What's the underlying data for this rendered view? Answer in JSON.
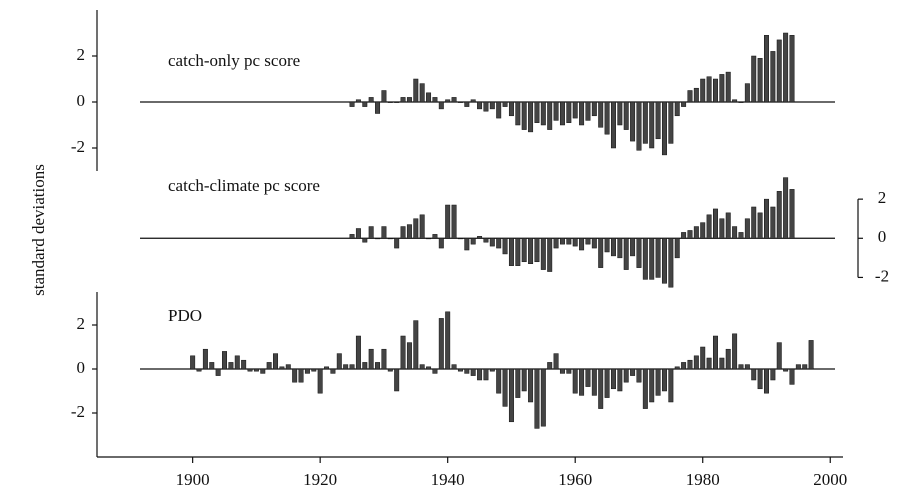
{
  "ylabel": "standard deviations",
  "chart_data": [
    {
      "type": "bar",
      "title": "catch-only pc score",
      "color": "#444444",
      "axis_side": "left",
      "x": [
        1925,
        1926,
        1927,
        1928,
        1929,
        1930,
        1931,
        1932,
        1933,
        1934,
        1935,
        1936,
        1937,
        1938,
        1939,
        1940,
        1941,
        1942,
        1943,
        1944,
        1945,
        1946,
        1947,
        1948,
        1949,
        1950,
        1951,
        1952,
        1953,
        1954,
        1955,
        1956,
        1957,
        1958,
        1959,
        1960,
        1961,
        1962,
        1963,
        1964,
        1965,
        1966,
        1967,
        1968,
        1969,
        1970,
        1971,
        1972,
        1973,
        1974,
        1975,
        1976,
        1977,
        1978,
        1979,
        1980,
        1981,
        1982,
        1983,
        1984,
        1985,
        1986,
        1987,
        1988,
        1989,
        1990,
        1991,
        1992,
        1993,
        1994
      ],
      "values": [
        -0.2,
        0.1,
        -0.2,
        0.2,
        -0.5,
        0.5,
        0,
        0,
        0.2,
        0.2,
        1.0,
        0.8,
        0.4,
        0.2,
        -0.3,
        0.1,
        0.2,
        0,
        -0.2,
        0.1,
        -0.3,
        -0.4,
        -0.3,
        -0.7,
        -0.2,
        -0.6,
        -1.0,
        -1.2,
        -1.3,
        -0.9,
        -1.0,
        -1.2,
        -0.8,
        -1.0,
        -0.9,
        -0.7,
        -1.0,
        -0.8,
        -0.6,
        -1.1,
        -1.4,
        -2.0,
        -1.0,
        -1.2,
        -1.7,
        -2.1,
        -1.8,
        -2.0,
        -1.6,
        -2.3,
        -1.8,
        -0.6,
        -0.2,
        0.5,
        0.6,
        1.0,
        1.1,
        1.0,
        1.2,
        1.3,
        0.1,
        0,
        0.8,
        2.0,
        1.9,
        2.9,
        2.2,
        2.7,
        3.0,
        2.9
      ],
      "ylim": [
        -3,
        4
      ],
      "yticks": [
        -2,
        0,
        2
      ]
    },
    {
      "type": "bar",
      "title": "catch-climate pc score",
      "color": "#444444",
      "axis_side": "right",
      "x": [
        1925,
        1926,
        1927,
        1928,
        1929,
        1930,
        1931,
        1932,
        1933,
        1934,
        1935,
        1936,
        1937,
        1938,
        1939,
        1940,
        1941,
        1942,
        1943,
        1944,
        1945,
        1946,
        1947,
        1948,
        1949,
        1950,
        1951,
        1952,
        1953,
        1954,
        1955,
        1956,
        1957,
        1958,
        1959,
        1960,
        1961,
        1962,
        1963,
        1964,
        1965,
        1966,
        1967,
        1968,
        1969,
        1970,
        1971,
        1972,
        1973,
        1974,
        1975,
        1976,
        1977,
        1978,
        1979,
        1980,
        1981,
        1982,
        1983,
        1984,
        1985,
        1986,
        1987,
        1988,
        1989,
        1990,
        1991,
        1992,
        1993,
        1994
      ],
      "values": [
        0.2,
        0.5,
        -0.2,
        0.6,
        0,
        0.6,
        0,
        -0.5,
        0.6,
        0.7,
        1.0,
        1.2,
        0,
        0.2,
        -0.5,
        1.7,
        1.7,
        0,
        -0.6,
        -0.3,
        0.1,
        -0.2,
        -0.4,
        -0.5,
        -0.8,
        -1.4,
        -1.4,
        -1.2,
        -1.3,
        -1.2,
        -1.6,
        -1.7,
        -0.5,
        -0.3,
        -0.3,
        -0.4,
        -0.6,
        -0.3,
        -0.5,
        -1.5,
        -0.7,
        -0.9,
        -1.0,
        -1.6,
        -0.9,
        -1.5,
        -2.1,
        -2.1,
        -2.0,
        -2.3,
        -2.5,
        -1.0,
        0.3,
        0.4,
        0.6,
        0.8,
        1.2,
        1.5,
        1.0,
        1.3,
        0.6,
        0.3,
        1.0,
        1.6,
        1.3,
        2.0,
        1.6,
        2.4,
        3.1,
        2.5
      ],
      "ylim": [
        -3,
        4
      ],
      "yticks": [
        -2,
        0,
        2
      ]
    },
    {
      "type": "bar",
      "title": "PDO",
      "color": "#444444",
      "axis_side": "left",
      "x": [
        1900,
        1901,
        1902,
        1903,
        1904,
        1905,
        1906,
        1907,
        1908,
        1909,
        1910,
        1911,
        1912,
        1913,
        1914,
        1915,
        1916,
        1917,
        1918,
        1919,
        1920,
        1921,
        1922,
        1923,
        1924,
        1925,
        1926,
        1927,
        1928,
        1929,
        1930,
        1931,
        1932,
        1933,
        1934,
        1935,
        1936,
        1937,
        1938,
        1939,
        1940,
        1941,
        1942,
        1943,
        1944,
        1945,
        1946,
        1947,
        1948,
        1949,
        1950,
        1951,
        1952,
        1953,
        1954,
        1955,
        1956,
        1957,
        1958,
        1959,
        1960,
        1961,
        1962,
        1963,
        1964,
        1965,
        1966,
        1967,
        1968,
        1969,
        1970,
        1971,
        1972,
        1973,
        1974,
        1975,
        1976,
        1977,
        1978,
        1979,
        1980,
        1981,
        1982,
        1983,
        1984,
        1985,
        1986,
        1987,
        1988,
        1989,
        1990,
        1991,
        1992,
        1993,
        1994,
        1995,
        1996,
        1997
      ],
      "values": [
        0.6,
        -0.1,
        0.9,
        0.3,
        -0.3,
        0.8,
        0.3,
        0.6,
        0.4,
        -0.1,
        -0.1,
        -0.2,
        0.3,
        0.7,
        0.1,
        0.2,
        -0.6,
        -0.6,
        -0.2,
        -0.1,
        -1.1,
        0.1,
        -0.2,
        0.7,
        0.2,
        0.2,
        1.5,
        0.3,
        0.9,
        0.3,
        0.9,
        -0.1,
        -1.0,
        1.5,
        1.2,
        2.2,
        0.2,
        0.1,
        -0.2,
        2.3,
        2.6,
        0.2,
        -0.1,
        -0.2,
        -0.3,
        -0.5,
        -0.5,
        -0.1,
        -1.1,
        -1.7,
        -2.4,
        -1.3,
        -1.0,
        -1.5,
        -2.7,
        -2.6,
        0.3,
        0.7,
        -0.2,
        -0.2,
        -1.1,
        -1.2,
        -0.8,
        -1.2,
        -1.8,
        -1.3,
        -0.9,
        -1.0,
        -0.6,
        -0.3,
        -0.6,
        -1.8,
        -1.5,
        -1.2,
        -1.0,
        -1.5,
        0.1,
        0.3,
        0.4,
        0.6,
        1.0,
        0.5,
        1.5,
        0.5,
        0.9,
        1.6,
        0.2,
        0.2,
        -0.5,
        -0.9,
        -1.1,
        -0.5,
        1.2,
        -0.1,
        -0.7,
        0.2,
        0.2,
        1.3
      ],
      "ylim": [
        -4,
        3.5
      ],
      "yticks": [
        -2,
        0,
        2
      ],
      "xlim": [
        1885,
        2002
      ],
      "xticks": [
        1900,
        1920,
        1940,
        1960,
        1980,
        2000
      ]
    }
  ]
}
